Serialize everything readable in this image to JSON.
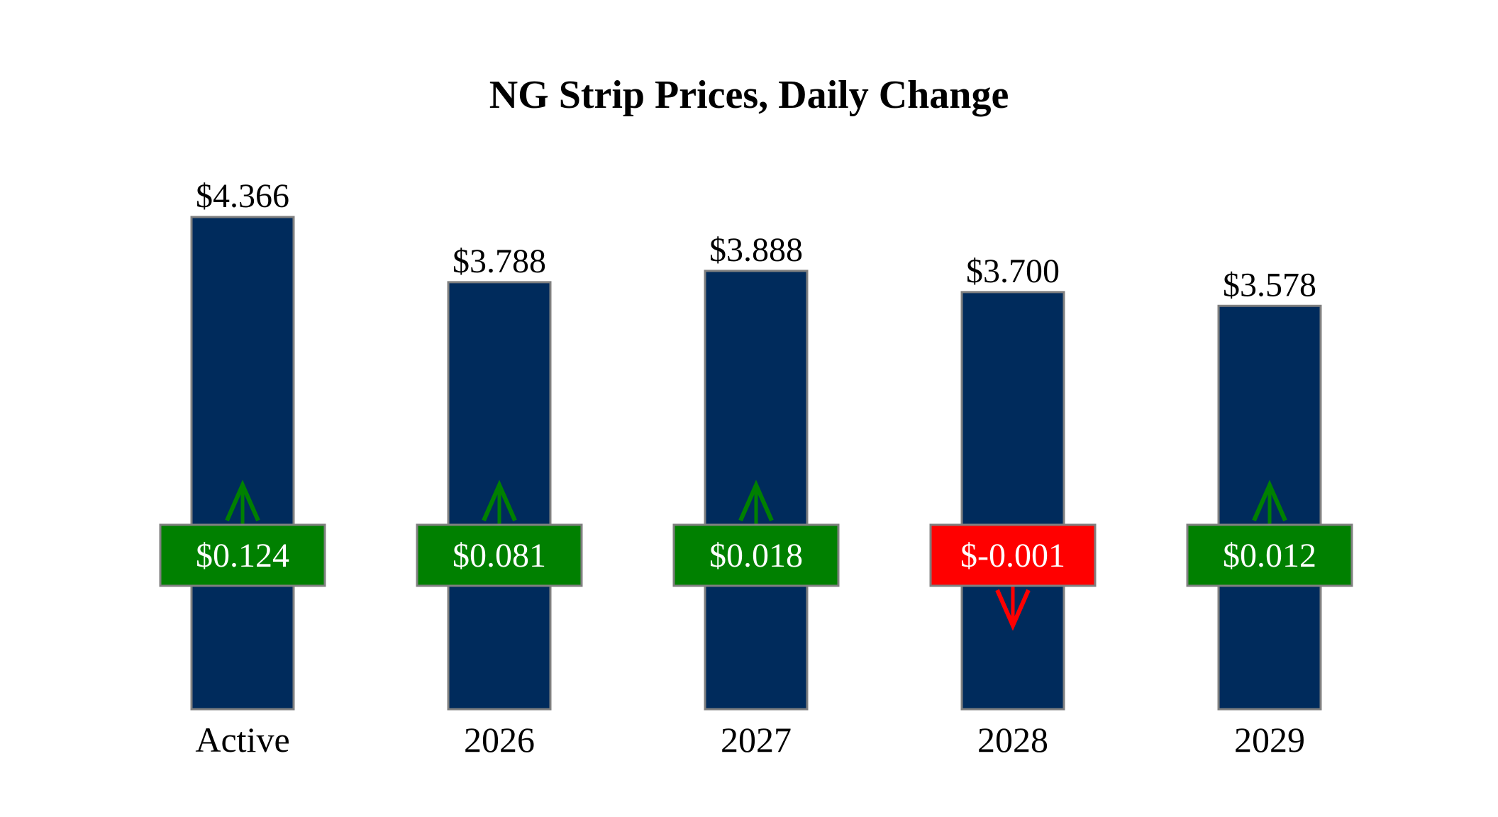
{
  "chart_data": {
    "type": "bar",
    "title": "NG Strip Prices, Daily Change",
    "categories": [
      "Active",
      "2026",
      "2027",
      "2028",
      "2029"
    ],
    "values": [
      4.366,
      3.788,
      3.888,
      3.7,
      3.578
    ],
    "value_labels": [
      "$4.366",
      "$3.788",
      "$3.888",
      "$3.700",
      "$3.578"
    ],
    "changes": [
      0.124,
      0.081,
      0.018,
      -0.001,
      0.012
    ],
    "change_labels": [
      "$0.124",
      "$0.081",
      "$0.018",
      "$-0.001",
      "$0.012"
    ],
    "ylim": [
      0,
      4.366
    ],
    "grid": false,
    "xlabel": "",
    "ylabel": "",
    "colors": {
      "bar": "#002b5c",
      "bar_border": "#808080",
      "up": "#008000",
      "down": "#ff0000"
    }
  }
}
